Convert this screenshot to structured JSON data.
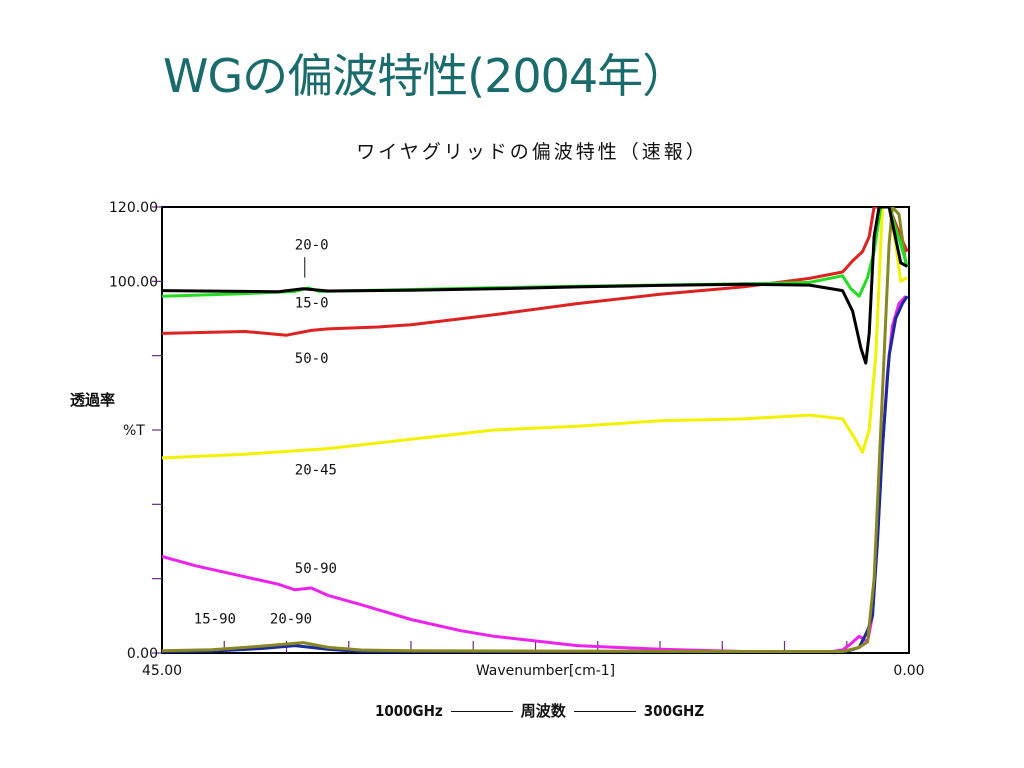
{
  "slide_title": "WGの偏波特性(2004年）",
  "footer": {
    "left": "1000GHz",
    "center": "周波数",
    "right": "300GHZ"
  },
  "chart_data": {
    "type": "line",
    "title": "ワイヤグリッドの偏波特性（速報）",
    "xlabel": "Wavenumber[cm-1]",
    "ylabel": "透過率",
    "ylabel_unit": "%T",
    "xlim": [
      45.0,
      0.0
    ],
    "ylim": [
      0.0,
      120.0
    ],
    "x_reversed": true,
    "y_tick_labels": [
      "120.00",
      "100.00",
      "0.00"
    ],
    "y_tick_values": [
      120,
      100,
      0
    ],
    "x_tick_labels": [
      "45.00",
      "0.00"
    ],
    "x_tick_values": [
      45,
      0
    ],
    "grid": false,
    "series": [
      {
        "name": "20-0",
        "color": "#000000",
        "points": [
          [
            45,
            97.5
          ],
          [
            38,
            97.2
          ],
          [
            36.5,
            98.0
          ],
          [
            35,
            97.4
          ],
          [
            30,
            97.6
          ],
          [
            25,
            98.0
          ],
          [
            20,
            98.5
          ],
          [
            15,
            98.9
          ],
          [
            10,
            99.2
          ],
          [
            6,
            99.0
          ],
          [
            4,
            97.5
          ],
          [
            3.4,
            92
          ],
          [
            2.9,
            82
          ],
          [
            2.6,
            78
          ],
          [
            2.4,
            86
          ],
          [
            2.1,
            112
          ],
          [
            1.8,
            120
          ],
          [
            1.2,
            120
          ],
          [
            0.5,
            105
          ],
          [
            0.1,
            104
          ]
        ]
      },
      {
        "name": "15-0",
        "color": "#22dd22",
        "points": [
          [
            45,
            96.0
          ],
          [
            40,
            96.7
          ],
          [
            37,
            97.3
          ],
          [
            36.2,
            98.2
          ],
          [
            35.5,
            97.3
          ],
          [
            30,
            97.8
          ],
          [
            25,
            98.3
          ],
          [
            20,
            98.7
          ],
          [
            15,
            99.0
          ],
          [
            10,
            99.3
          ],
          [
            6,
            99.7
          ],
          [
            4,
            101.5
          ],
          [
            3.5,
            98
          ],
          [
            3.0,
            96
          ],
          [
            2.5,
            101
          ],
          [
            2.1,
            108
          ],
          [
            1.7,
            120
          ],
          [
            1.2,
            120
          ],
          [
            0.5,
            110
          ],
          [
            0.1,
            104
          ]
        ]
      },
      {
        "name": "50-0",
        "color": "#dd2222",
        "points": [
          [
            45,
            86.0
          ],
          [
            40,
            86.5
          ],
          [
            37.5,
            85.5
          ],
          [
            36,
            86.8
          ],
          [
            35,
            87.2
          ],
          [
            32,
            87.7
          ],
          [
            30,
            88.3
          ],
          [
            25,
            91.0
          ],
          [
            20,
            94.0
          ],
          [
            15,
            96.5
          ],
          [
            10,
            98.5
          ],
          [
            6,
            100.8
          ],
          [
            4,
            102.5
          ],
          [
            3.4,
            105.5
          ],
          [
            2.8,
            108
          ],
          [
            2.4,
            112
          ],
          [
            2.1,
            120
          ],
          [
            1.2,
            120
          ],
          [
            0.5,
            112
          ],
          [
            0.1,
            108
          ]
        ]
      },
      {
        "name": "20-45",
        "color": "#f2f200",
        "points": [
          [
            45,
            52.5
          ],
          [
            40,
            53.5
          ],
          [
            35,
            55.0
          ],
          [
            30,
            57.5
          ],
          [
            25,
            60.0
          ],
          [
            20,
            61.0
          ],
          [
            15,
            62.5
          ],
          [
            10,
            63.0
          ],
          [
            6,
            64.0
          ],
          [
            4,
            63.0
          ],
          [
            3.3,
            58
          ],
          [
            2.8,
            54
          ],
          [
            2.4,
            60
          ],
          [
            2.0,
            80
          ],
          [
            1.6,
            120
          ],
          [
            1.2,
            120
          ],
          [
            0.8,
            110
          ],
          [
            0.5,
            100
          ],
          [
            0.1,
            101
          ]
        ]
      },
      {
        "name": "50-90",
        "color": "#ee22ee",
        "points": [
          [
            45,
            26.0
          ],
          [
            43,
            23.5
          ],
          [
            40,
            20.5
          ],
          [
            38,
            18.5
          ],
          [
            37,
            17.0
          ],
          [
            36,
            17.5
          ],
          [
            35,
            15.5
          ],
          [
            33,
            13.0
          ],
          [
            30,
            9.0
          ],
          [
            27,
            6.0
          ],
          [
            25,
            4.5
          ],
          [
            22,
            3.0
          ],
          [
            20,
            2.0
          ],
          [
            15,
            1.0
          ],
          [
            10,
            0.4
          ],
          [
            5,
            0.2
          ],
          [
            4,
            0.8
          ],
          [
            3.5,
            2.5
          ],
          [
            3.0,
            4.5
          ],
          [
            2.5,
            3
          ],
          [
            2.2,
            10
          ],
          [
            1.9,
            32
          ],
          [
            1.6,
            55
          ],
          [
            1.3,
            75
          ],
          [
            1.0,
            88
          ],
          [
            0.6,
            94
          ],
          [
            0.2,
            96
          ]
        ]
      },
      {
        "name": "15-90",
        "color": "#1a2a9a",
        "points": [
          [
            45,
            0.3
          ],
          [
            42,
            0.5
          ],
          [
            39,
            1.2
          ],
          [
            37,
            2.0
          ],
          [
            35,
            1.0
          ],
          [
            33,
            0.4
          ],
          [
            30,
            0.2
          ],
          [
            20,
            0.1
          ],
          [
            10,
            0.1
          ],
          [
            4,
            0.1
          ],
          [
            3.0,
            1.5
          ],
          [
            2.5,
            6
          ],
          [
            2.2,
            10
          ],
          [
            1.9,
            30
          ],
          [
            1.6,
            55
          ],
          [
            1.2,
            80
          ],
          [
            0.8,
            90
          ],
          [
            0.4,
            94
          ],
          [
            0.1,
            96
          ]
        ]
      },
      {
        "name": "20-90",
        "color": "#888822",
        "points": [
          [
            45,
            0.6
          ],
          [
            42,
            0.9
          ],
          [
            40,
            1.5
          ],
          [
            38,
            2.2
          ],
          [
            36.5,
            2.8
          ],
          [
            35,
            1.5
          ],
          [
            33,
            0.8
          ],
          [
            30,
            0.6
          ],
          [
            20,
            0.5
          ],
          [
            10,
            0.4
          ],
          [
            4,
            0.4
          ],
          [
            3.0,
            1.5
          ],
          [
            2.5,
            3
          ],
          [
            2.1,
            20
          ],
          [
            1.8,
            50
          ],
          [
            1.5,
            80
          ],
          [
            1.2,
            110
          ],
          [
            1.0,
            120
          ],
          [
            0.6,
            118
          ],
          [
            0.2,
            105
          ]
        ]
      }
    ],
    "annotations": [
      "20-0",
      "15-0",
      "50-0",
      "20-45",
      "50-90",
      "15-90",
      "20-90"
    ]
  }
}
